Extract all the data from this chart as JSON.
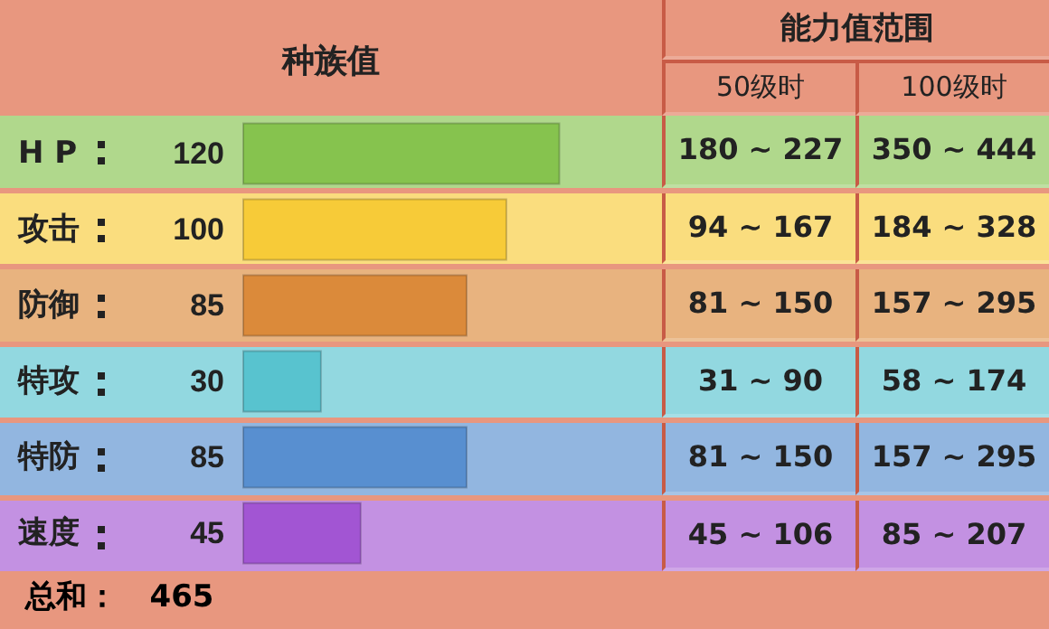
{
  "chart_data": [
    {
      "type": "bar",
      "orientation": "horizontal",
      "title": "种族值",
      "categories": [
        "H P",
        "攻击",
        "防御",
        "特攻",
        "特防",
        "速度"
      ],
      "values": [
        120,
        100,
        85,
        30,
        85,
        45
      ],
      "colors": [
        "#86c34e",
        "#f7cb38",
        "#db8a3a",
        "#58c3cf",
        "#588fd0",
        "#a255d3"
      ],
      "data_labels": true,
      "tick_labels": "y",
      "annotations": [
        "总和：   465"
      ]
    },
    {
      "type": "other",
      "title": "能力值范围",
      "categories": [
        "50级时",
        "100级时"
      ],
      "annotations": [
        "180 ~ 227",
        "350 ~ 444",
        "94 ~ 167",
        "184 ~ 328",
        "81 ~ 150",
        "157 ~ 295",
        "31 ~ 90",
        "58 ~ 174",
        "81 ~ 150",
        "157 ~ 295",
        "45 ~ 106",
        "85 ~ 207"
      ]
    }
  ]
}
